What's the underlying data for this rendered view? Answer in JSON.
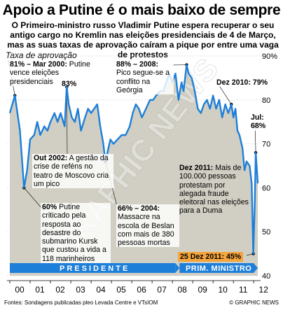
{
  "title": "Apoio a Putine é o mais baixo de sempre",
  "lead": "O Primeiro-ministro russo Vladimir Putine espera recuperar o seu antigo cargo no Kremlin nas eleições presidenciais de 4 de Março, mas as suas taxas de aprovação caíram a pique por entre uma vaga de protestos",
  "chart_data": {
    "type": "line",
    "ylabel": "Taxa de aprovação",
    "ylim": [
      40,
      90
    ],
    "yticks": [
      "90%",
      "80",
      "70",
      "60",
      "50",
      "40"
    ],
    "x_tick_labels": [
      "00",
      "01",
      "02",
      "03",
      "04",
      "05",
      "06",
      "07",
      "08",
      "09",
      "10",
      "11",
      "12"
    ],
    "series": [
      {
        "values": [
          [
            2000.0,
            77
          ],
          [
            2000.25,
            81
          ],
          [
            2000.5,
            73
          ],
          [
            2000.7,
            60
          ],
          [
            2000.85,
            64
          ],
          [
            2001.0,
            71
          ],
          [
            2001.2,
            72
          ],
          [
            2001.35,
            75
          ],
          [
            2001.5,
            72
          ],
          [
            2001.7,
            74
          ],
          [
            2001.85,
            73
          ],
          [
            2002.0,
            75
          ],
          [
            2002.2,
            77
          ],
          [
            2002.35,
            75
          ],
          [
            2002.5,
            77
          ],
          [
            2002.7,
            74
          ],
          [
            2002.8,
            83
          ],
          [
            2002.9,
            79
          ],
          [
            2003.05,
            76
          ],
          [
            2003.2,
            75
          ],
          [
            2003.35,
            78
          ],
          [
            2003.5,
            73
          ],
          [
            2003.7,
            76
          ],
          [
            2003.85,
            78
          ],
          [
            2004.0,
            77
          ],
          [
            2004.15,
            78
          ],
          [
            2004.3,
            79
          ],
          [
            2004.45,
            74
          ],
          [
            2004.6,
            70
          ],
          [
            2004.7,
            66
          ],
          [
            2004.8,
            68
          ],
          [
            2004.95,
            71
          ],
          [
            2005.1,
            70
          ],
          [
            2005.3,
            71
          ],
          [
            2005.5,
            72
          ],
          [
            2005.7,
            72
          ],
          [
            2005.9,
            74
          ],
          [
            2006.05,
            77
          ],
          [
            2006.2,
            79
          ],
          [
            2006.35,
            78
          ],
          [
            2006.5,
            76
          ],
          [
            2006.7,
            78
          ],
          [
            2006.9,
            80
          ],
          [
            2007.05,
            80
          ],
          [
            2007.2,
            81
          ],
          [
            2007.4,
            82
          ],
          [
            2007.55,
            82
          ],
          [
            2007.7,
            84
          ],
          [
            2007.85,
            86
          ],
          [
            2008.0,
            84
          ],
          [
            2008.15,
            86
          ],
          [
            2008.3,
            80
          ],
          [
            2008.45,
            84
          ],
          [
            2008.55,
            82
          ],
          [
            2008.7,
            88
          ],
          [
            2008.8,
            86
          ],
          [
            2008.95,
            85
          ],
          [
            2009.1,
            82
          ],
          [
            2009.25,
            78
          ],
          [
            2009.4,
            77
          ],
          [
            2009.55,
            79
          ],
          [
            2009.7,
            80
          ],
          [
            2009.85,
            78
          ],
          [
            2010.0,
            81
          ],
          [
            2010.15,
            78
          ],
          [
            2010.3,
            80
          ],
          [
            2010.45,
            76
          ],
          [
            2010.6,
            79
          ],
          [
            2010.75,
            77
          ],
          [
            2010.9,
            79
          ],
          [
            2011.0,
            76
          ],
          [
            2011.1,
            78
          ],
          [
            2011.2,
            73
          ],
          [
            2011.3,
            72
          ],
          [
            2011.45,
            69
          ],
          [
            2011.55,
            64
          ],
          [
            2011.65,
            66
          ],
          [
            2011.8,
            65
          ],
          [
            2011.9,
            61
          ],
          [
            2011.98,
            45
          ],
          [
            2012.05,
            56
          ],
          [
            2012.1,
            68
          ],
          [
            2012.2,
            61
          ]
        ]
      }
    ],
    "eras": [
      {
        "label": "PRESIDENTE",
        "x0": 2000.0,
        "x1": 2008.35
      },
      {
        "label": "PRIM. MINISTRO",
        "x0": 2008.35,
        "x1": 2012.2
      }
    ],
    "annotations": [
      {
        "text": "81% – Mar 2000: Putine vence eleições presidenciais",
        "x": 2000.25,
        "y": 81
      },
      {
        "text": "83%",
        "x": 2002.8,
        "y": 83
      },
      {
        "text": "Out 2002: A gestão da crise de reféns no teatro de Moscovo cria um pico",
        "x": 2002.8,
        "y": 83
      },
      {
        "text": "60% Putine criticado pela resposta ao desastre do submarino Kursk que custou a vida a 118 marinheiros",
        "x": 2000.7,
        "y": 60
      },
      {
        "text": "66% – 2004: Massacre na escola de Beslan com mais de 380 pessoas mortas",
        "x": 2004.7,
        "y": 66
      },
      {
        "text": "88% – 2008: Pico segue-se a conflito na Geórgia",
        "x": 2008.7,
        "y": 88
      },
      {
        "text": "Dez 2010: 79%",
        "x": 2010.9,
        "y": 79
      },
      {
        "text": "Jul: 68%",
        "x": 2012.1,
        "y": 68
      },
      {
        "text": "Dez 2011: Mais de 100.000 pessoas protestam por alegada fraude eleitoral nas eleições para a Duma",
        "x": 2011.98,
        "y": 45
      },
      {
        "text": "25 Dez 2011: 45%",
        "x": 2011.98,
        "y": 45
      }
    ]
  },
  "labels": {
    "a1": {
      "b": "81% – Mar 2000:",
      "t": " Putine vence eleições presidenciais"
    },
    "a2": "83%",
    "a3": {
      "b": "Out 2002:",
      "t": " A gestão da crise de reféns no teatro de Moscovo cria um pico"
    },
    "a4": {
      "b": "60%",
      "t": " Putine criticado pela resposta ao desastre do submarino Kursk que custou a vida a 118 marinheiros"
    },
    "a5": {
      "b": "66% – 2004:",
      "t": " Massacre na escola de Beslan com mais de 380 pessoas mortas"
    },
    "a6": {
      "b": "88% – 2008:",
      "t": " Pico segue-se a conflito na Geórgia"
    },
    "a7": "Dez 2010: 79%",
    "a8": "Jul: 68%",
    "a9": {
      "b": "Dez 2011:",
      "t": " Mais de 100.000 pessoas protestam por alegada fraude eleitoral nas eleições para a Duma"
    },
    "a10": "25 Dez 2011: 45%"
  },
  "source": "Fontes: Sondagens publicadas pleo Levada Centre e VTsIOM",
  "brand": "© GRAPHIC NEWS",
  "watermark": "GRAPHIC NEWS",
  "colors": {
    "line": "#1e7fd9",
    "era_band": "#1e7fd9",
    "shade": "#c9c7b8",
    "highlight": "#f5a53c"
  }
}
